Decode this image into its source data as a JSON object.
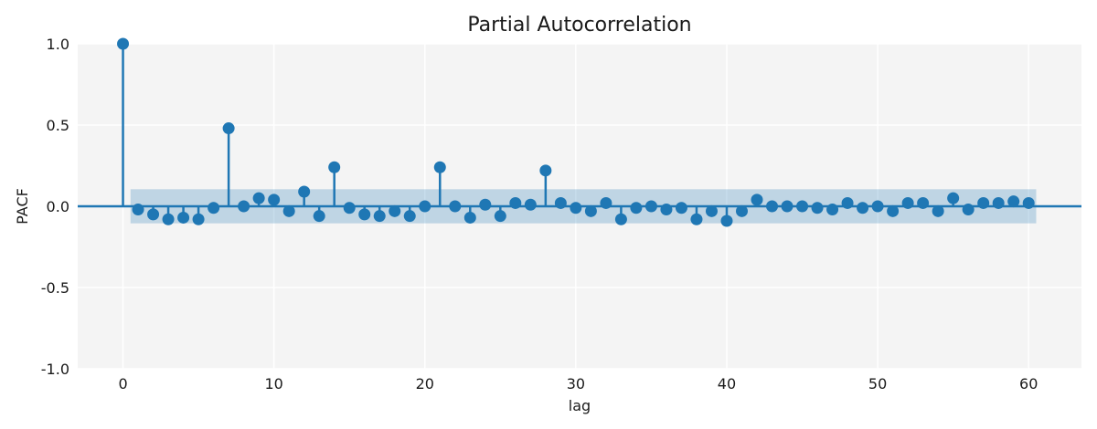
{
  "chart_data": {
    "type": "stem",
    "title": "Partial Autocorrelation",
    "xlabel": "lag",
    "ylabel": "PACF",
    "xlim": [
      -3,
      63.5
    ],
    "ylim": [
      -1.0,
      1.0
    ],
    "x_ticks": [
      0,
      10,
      20,
      30,
      40,
      50,
      60
    ],
    "x_tick_labels": [
      "0",
      "10",
      "20",
      "30",
      "40",
      "50",
      "60"
    ],
    "y_ticks": [
      -1.0,
      -0.5,
      0.0,
      0.5,
      1.0
    ],
    "y_tick_labels": [
      "-1.0",
      "-0.5",
      "0.0",
      "0.5",
      "1.0"
    ],
    "grid": true,
    "confidence_band": {
      "x_range": [
        0.5,
        60.5
      ],
      "lower": -0.105,
      "upper": 0.105
    },
    "colors": {
      "stem": "#1f77b4",
      "band": "#1f77b4",
      "background": "#f4f4f4",
      "grid": "#ffffff"
    },
    "lags": [
      0,
      1,
      2,
      3,
      4,
      5,
      6,
      7,
      8,
      9,
      10,
      11,
      12,
      13,
      14,
      15,
      16,
      17,
      18,
      19,
      20,
      21,
      22,
      23,
      24,
      25,
      26,
      27,
      28,
      29,
      30,
      31,
      32,
      33,
      34,
      35,
      36,
      37,
      38,
      39,
      40,
      41,
      42,
      43,
      44,
      45,
      46,
      47,
      48,
      49,
      50,
      51,
      52,
      53,
      54,
      55,
      56,
      57,
      58,
      59,
      60
    ],
    "values": [
      1.0,
      -0.02,
      -0.05,
      -0.08,
      -0.07,
      -0.08,
      -0.01,
      0.48,
      0.0,
      0.05,
      0.04,
      -0.03,
      0.09,
      -0.06,
      0.24,
      -0.01,
      -0.05,
      -0.06,
      -0.03,
      -0.06,
      0.0,
      0.24,
      0.0,
      -0.07,
      0.01,
      -0.06,
      0.02,
      0.01,
      0.22,
      0.02,
      -0.01,
      -0.03,
      0.02,
      -0.08,
      -0.01,
      0.0,
      -0.02,
      -0.01,
      -0.08,
      -0.03,
      -0.09,
      -0.03,
      0.04,
      0.0,
      0.0,
      0.0,
      -0.01,
      -0.02,
      0.02,
      -0.01,
      0.0,
      -0.03,
      0.02,
      0.02,
      -0.03,
      0.05,
      -0.02,
      0.02,
      0.02,
      0.03,
      0.02
    ]
  }
}
